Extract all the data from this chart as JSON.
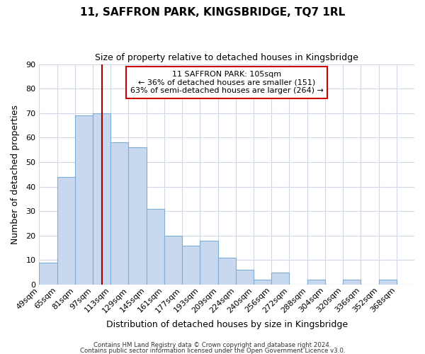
{
  "title": "11, SAFFRON PARK, KINGSBRIDGE, TQ7 1RL",
  "subtitle": "Size of property relative to detached houses in Kingsbridge",
  "xlabel": "Distribution of detached houses by size in Kingsbridge",
  "ylabel": "Number of detached properties",
  "categories": [
    "49sqm",
    "65sqm",
    "81sqm",
    "97sqm",
    "113sqm",
    "129sqm",
    "145sqm",
    "161sqm",
    "177sqm",
    "193sqm",
    "209sqm",
    "224sqm",
    "240sqm",
    "256sqm",
    "272sqm",
    "288sqm",
    "304sqm",
    "320sqm",
    "336sqm",
    "352sqm",
    "368sqm"
  ],
  "values": [
    9,
    44,
    69,
    70,
    58,
    56,
    31,
    20,
    16,
    18,
    11,
    6,
    2,
    5,
    0,
    2,
    0,
    2,
    0,
    2,
    0
  ],
  "bar_color": "#c8d9ef",
  "bar_edge_color": "#7dadd4",
  "vline_x_index": 3.5,
  "vline_color": "#aa0000",
  "annotation_text": "11 SAFFRON PARK: 105sqm\n← 36% of detached houses are smaller (151)\n63% of semi-detached houses are larger (264) →",
  "annotation_box_color": "#ffffff",
  "annotation_box_edge": "#cc0000",
  "ylim": [
    0,
    90
  ],
  "yticks": [
    0,
    10,
    20,
    30,
    40,
    50,
    60,
    70,
    80,
    90
  ],
  "footer1": "Contains HM Land Registry data © Crown copyright and database right 2024.",
  "footer2": "Contains public sector information licensed under the Open Government Licence v3.0.",
  "bg_color": "#ffffff",
  "plot_bg_color": "#ffffff",
  "grid_color": "#d0d8e8",
  "bin_width": 1
}
